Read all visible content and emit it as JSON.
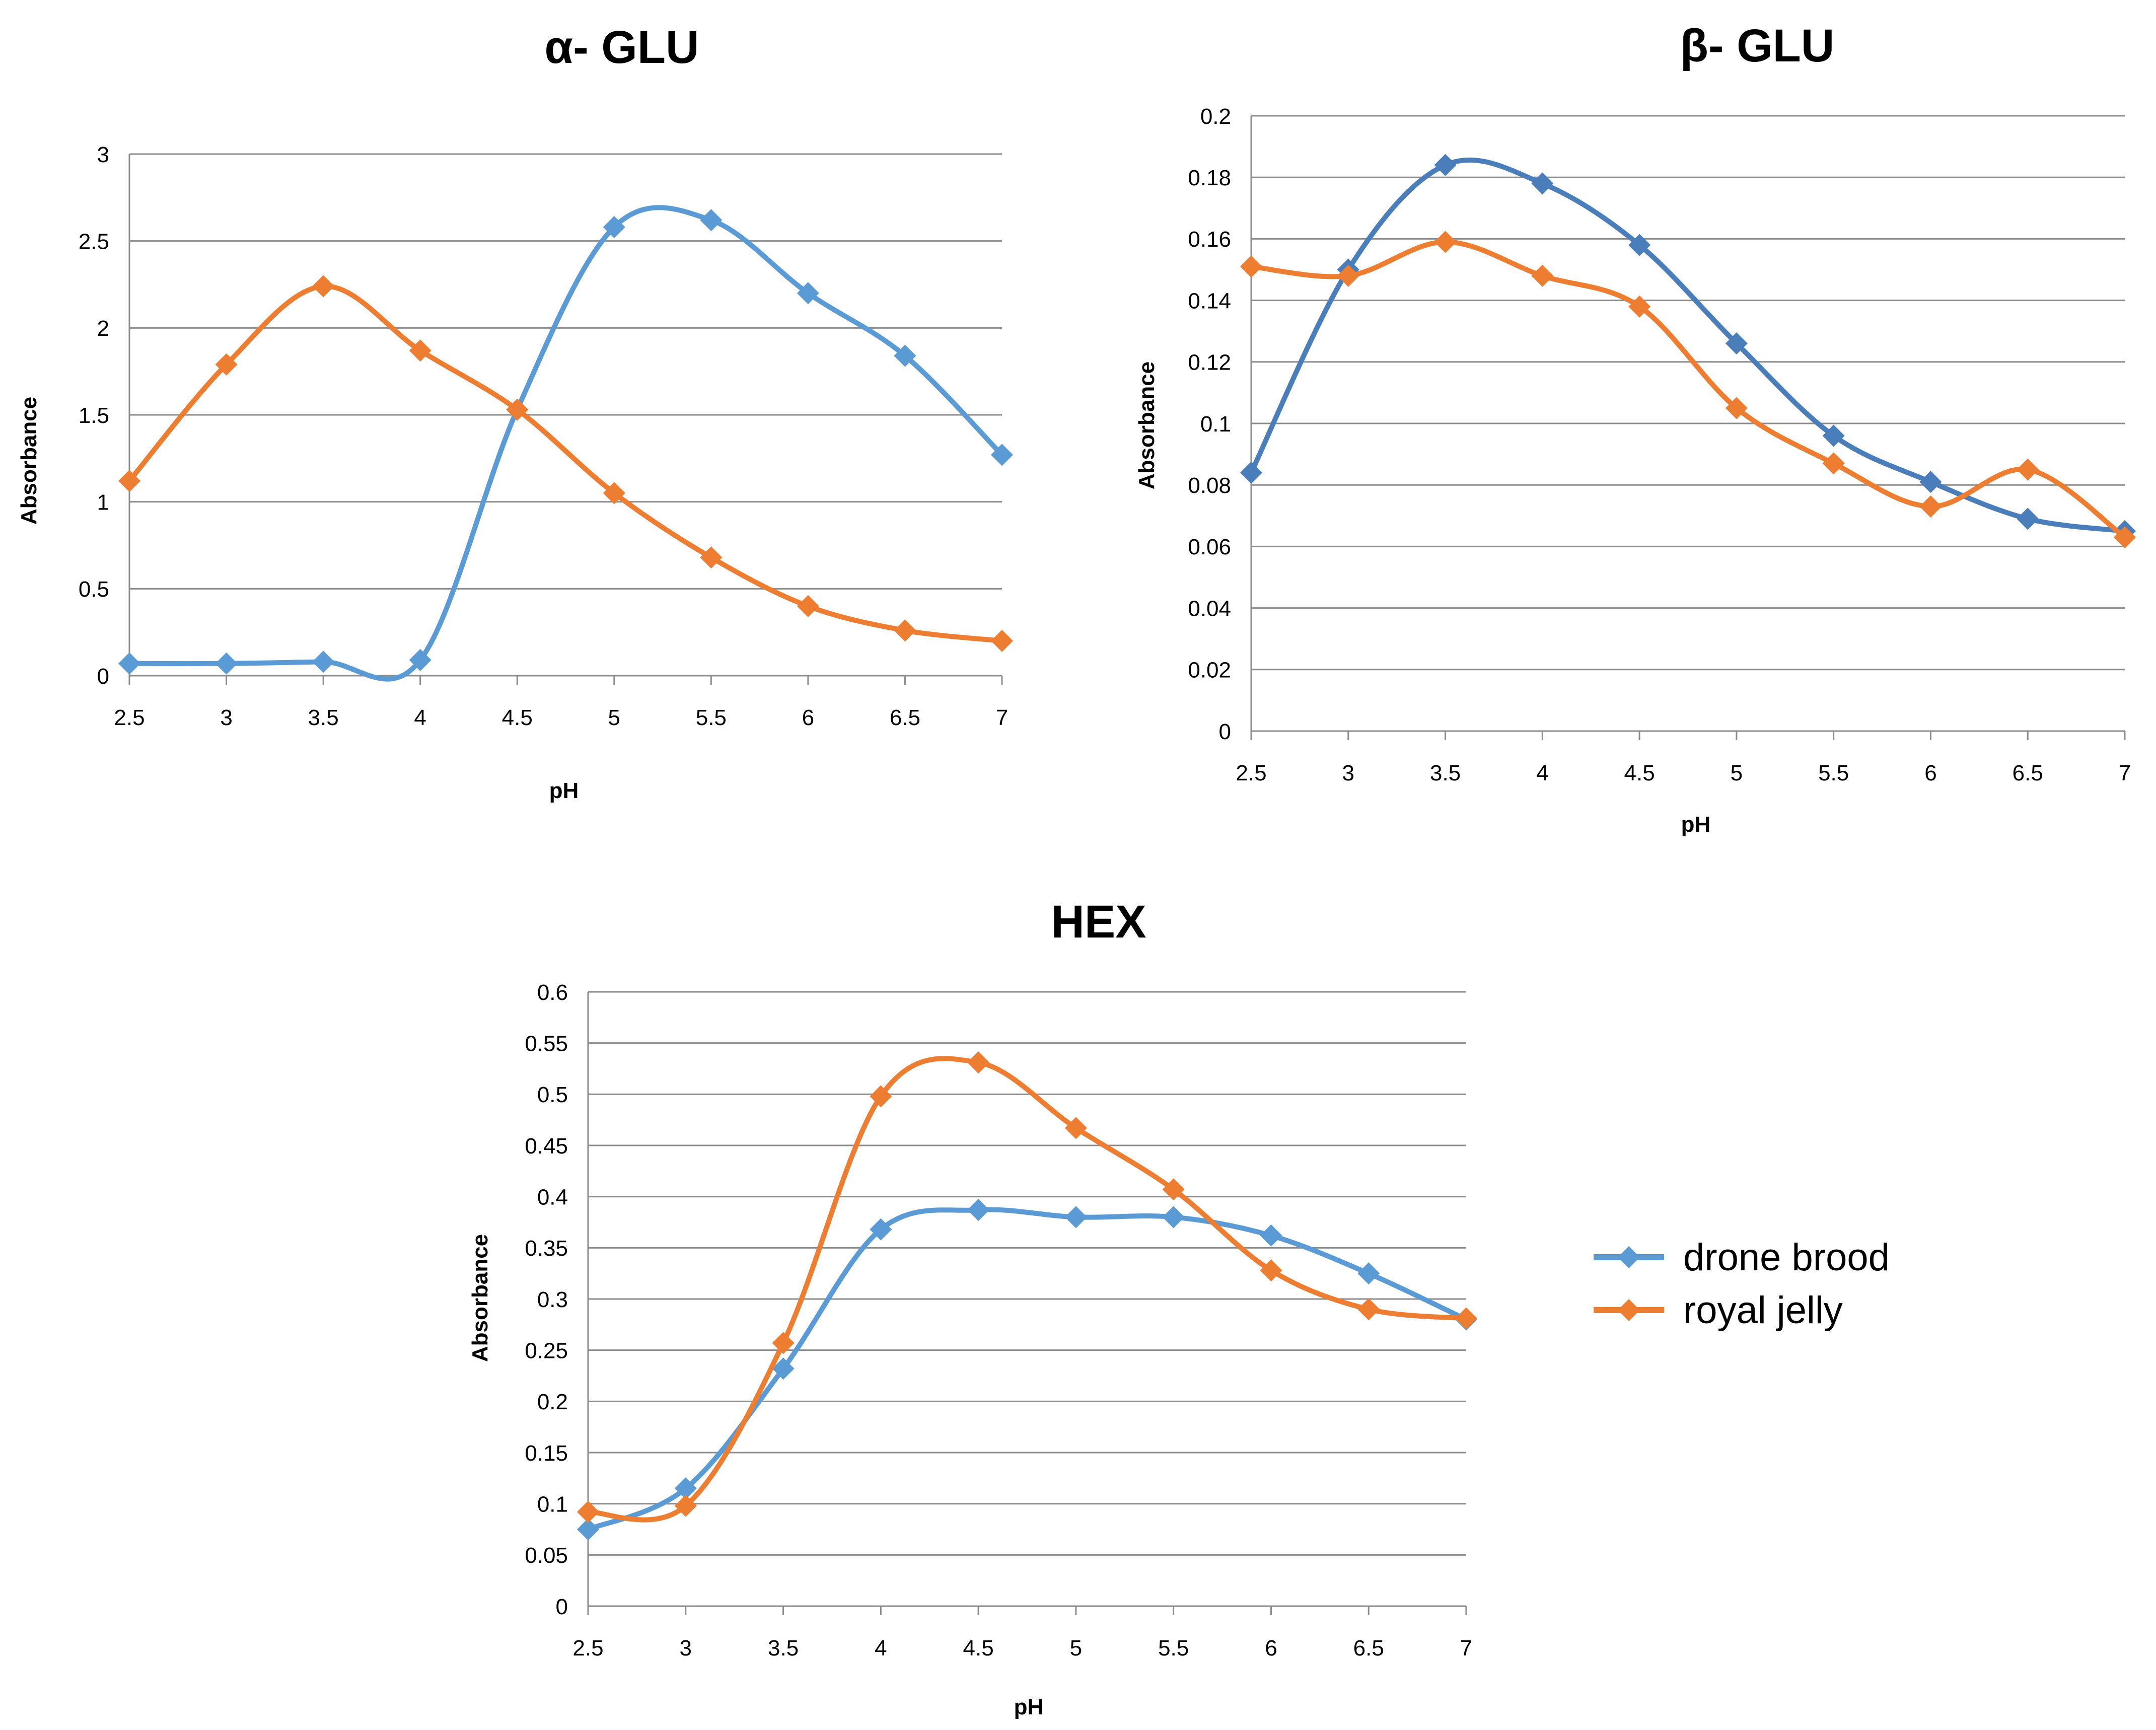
{
  "colors": {
    "drone_alpha": "#5B9BD5",
    "drone": "#4A7EBB",
    "royal": "#ED7D31",
    "grid": "#8C8C8C"
  },
  "legend": {
    "items": [
      {
        "label": "drone brood",
        "color": "#5B9BD5"
      },
      {
        "label": "royal jelly",
        "color": "#ED7D31"
      }
    ]
  },
  "chart_data": [
    {
      "type": "line",
      "title": "α- GLU",
      "xlabel": "pH",
      "ylabel": "Absorbance",
      "categories": [
        "2.5",
        "3",
        "3.5",
        "4",
        "4.5",
        "5",
        "5.5",
        "6",
        "6.5",
        "7"
      ],
      "x": [
        2.5,
        3,
        3.5,
        4,
        4.5,
        5,
        5.5,
        6,
        6.5,
        7
      ],
      "xlim": [
        2.5,
        7
      ],
      "ylim": [
        0,
        3
      ],
      "yticks": [
        "0",
        "0.5",
        "1",
        "1.5",
        "2",
        "2.5",
        "3"
      ],
      "grid": true,
      "series": [
        {
          "name": "drone brood",
          "color": "#5B9BD5",
          "values": [
            0.07,
            0.07,
            0.08,
            0.09,
            1.53,
            2.58,
            2.62,
            2.2,
            1.84,
            1.27
          ]
        },
        {
          "name": "royal jelly",
          "color": "#ED7D31",
          "values": [
            1.12,
            1.79,
            2.24,
            1.87,
            1.53,
            1.05,
            0.68,
            0.4,
            0.26,
            0.2
          ]
        }
      ]
    },
    {
      "type": "line",
      "title": "β- GLU",
      "xlabel": "pH",
      "ylabel": "Absorbance",
      "categories": [
        "2.5",
        "3",
        "3.5",
        "4",
        "4.5",
        "5",
        "5.5",
        "6",
        "6.5",
        "7"
      ],
      "x": [
        2.5,
        3,
        3.5,
        4,
        4.5,
        5,
        5.5,
        6,
        6.5,
        7
      ],
      "xlim": [
        2.5,
        7
      ],
      "ylim": [
        0,
        0.2
      ],
      "yticks": [
        "0",
        "0.02",
        "0.04",
        "0.06",
        "0.08",
        "0.1",
        "0.12",
        "0.14",
        "0.16",
        "0.18",
        "0.2"
      ],
      "grid": true,
      "series": [
        {
          "name": "drone brood",
          "color": "#4A7EBB",
          "values": [
            0.084,
            0.15,
            0.184,
            0.178,
            0.158,
            0.126,
            0.096,
            0.081,
            0.069,
            0.065
          ]
        },
        {
          "name": "royal jelly",
          "color": "#ED7D31",
          "values": [
            0.151,
            0.148,
            0.159,
            0.148,
            0.138,
            0.105,
            0.087,
            0.073,
            0.085,
            0.063
          ]
        }
      ]
    },
    {
      "type": "line",
      "title": "HEX",
      "xlabel": "pH",
      "ylabel": "Absorbance",
      "categories": [
        "2.5",
        "3",
        "3.5",
        "4",
        "4.5",
        "5",
        "5.5",
        "6",
        "6.5",
        "7"
      ],
      "x": [
        2.5,
        3,
        3.5,
        4,
        4.5,
        5,
        5.5,
        6,
        6.5,
        7
      ],
      "xlim": [
        2.5,
        7
      ],
      "ylim": [
        0,
        0.6
      ],
      "yticks": [
        "0",
        "0.05",
        "0.1",
        "0.15",
        "0.2",
        "0.25",
        "0.3",
        "0.35",
        "0.4",
        "0.45",
        "0.5",
        "0.55",
        "0.6"
      ],
      "grid": true,
      "series": [
        {
          "name": "drone brood",
          "color": "#5B9BD5",
          "values": [
            0.075,
            0.115,
            0.232,
            0.368,
            0.387,
            0.38,
            0.38,
            0.362,
            0.325,
            0.28
          ]
        },
        {
          "name": "royal jelly",
          "color": "#ED7D31",
          "values": [
            0.092,
            0.098,
            0.257,
            0.498,
            0.531,
            0.467,
            0.407,
            0.328,
            0.29,
            0.281
          ]
        }
      ],
      "legend_position": "right"
    }
  ]
}
